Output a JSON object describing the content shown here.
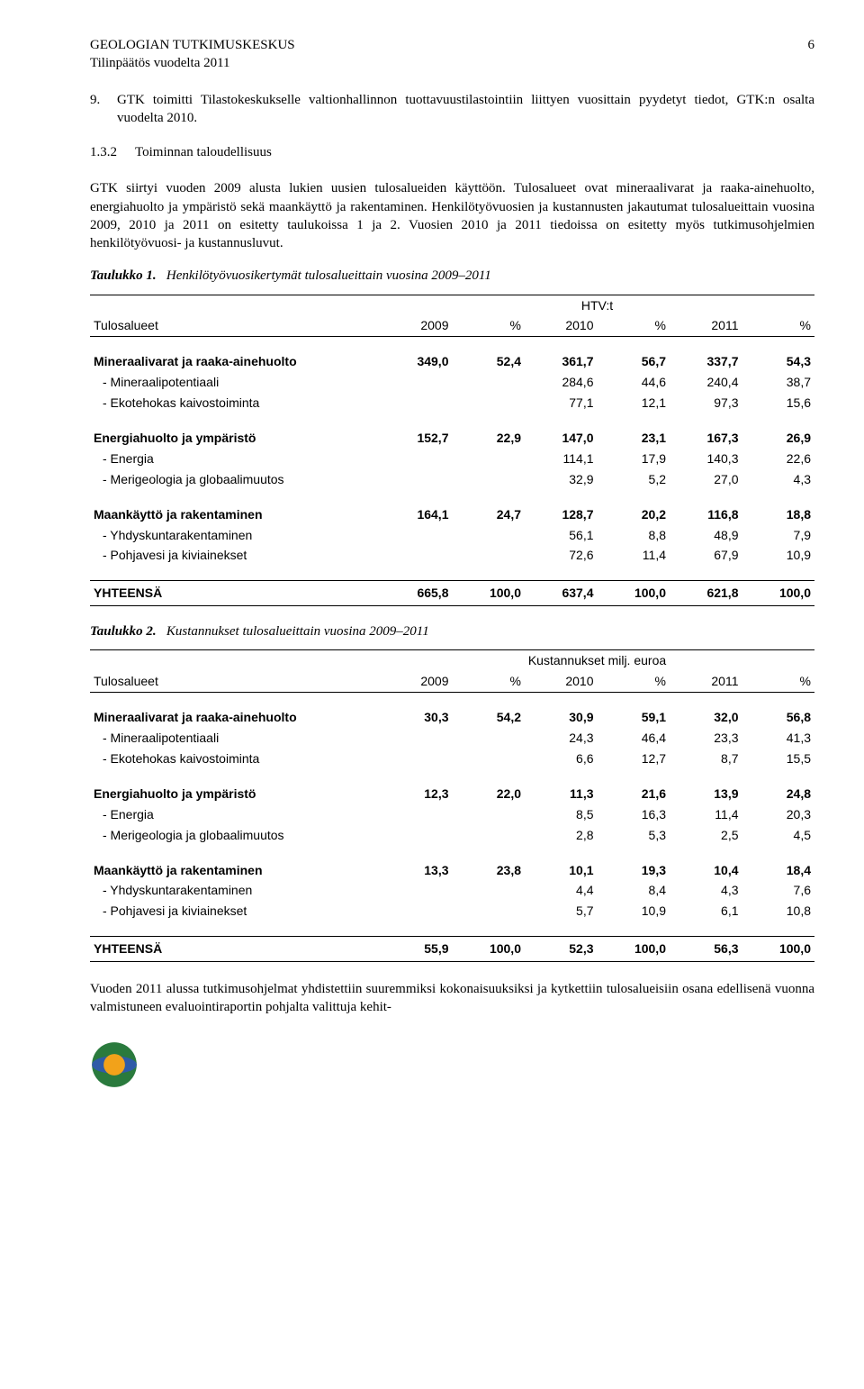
{
  "header": {
    "org": "GEOLOGIAN TUTKIMUSKESKUS",
    "subtitle": "Tilinpäätös vuodelta 2011",
    "page": "6"
  },
  "list9": {
    "num": "9.",
    "text": "GTK toimitti Tilastokeskukselle valtionhallinnon tuottavuustilastointiin liittyen vuosittain pyydetyt tiedot, GTK:n osalta vuodelta 2010."
  },
  "section": {
    "num": "1.3.2",
    "title": "Toiminnan taloudellisuus"
  },
  "para1": "GTK siirtyi vuoden 2009 alusta lukien uusien tulosalueiden käyttöön. Tulosalueet ovat mineraalivarat ja raaka-ainehuolto, energiahuolto ja ympäristö sekä maankäyttö ja rakentaminen. Henkilötyövuosien ja kustannusten jakautumat tulosalueittain vuosina 2009, 2010 ja 2011 on esitetty taulukoissa 1 ja 2. Vuosien 2010 ja 2011 tiedoissa on esitetty myös tutkimusohjelmien henkilötyövuosi- ja kustannusluvut.",
  "table1": {
    "caption_label": "Taulukko 1.",
    "caption_text": "Henkilötyövuosikertymät tulosalueittain vuosina 2009–2011",
    "super_header": "HTV:t",
    "col_label": "Tulosalueet",
    "cols": [
      "2009",
      "%",
      "2010",
      "%",
      "2011",
      "%"
    ],
    "groups": [
      {
        "title": "Mineraalivarat ja raaka-ainehuolto",
        "vals": [
          "349,0",
          "52,4",
          "361,7",
          "56,7",
          "337,7",
          "54,3"
        ],
        "subs": [
          {
            "label": "- Mineraalipotentiaali",
            "vals": [
              "",
              "",
              "284,6",
              "44,6",
              "240,4",
              "38,7"
            ]
          },
          {
            "label": "- Ekotehokas kaivostoiminta",
            "vals": [
              "",
              "",
              "77,1",
              "12,1",
              "97,3",
              "15,6"
            ]
          }
        ]
      },
      {
        "title": "Energiahuolto ja ympäristö",
        "vals": [
          "152,7",
          "22,9",
          "147,0",
          "23,1",
          "167,3",
          "26,9"
        ],
        "subs": [
          {
            "label": "- Energia",
            "vals": [
              "",
              "",
              "114,1",
              "17,9",
              "140,3",
              "22,6"
            ]
          },
          {
            "label": "- Merigeologia ja globaalimuutos",
            "vals": [
              "",
              "",
              "32,9",
              "5,2",
              "27,0",
              "4,3"
            ]
          }
        ]
      },
      {
        "title": "Maankäyttö ja rakentaminen",
        "vals": [
          "164,1",
          "24,7",
          "128,7",
          "20,2",
          "116,8",
          "18,8"
        ],
        "subs": [
          {
            "label": "- Yhdyskuntarakentaminen",
            "vals": [
              "",
              "",
              "56,1",
              "8,8",
              "48,9",
              "7,9"
            ]
          },
          {
            "label": "- Pohjavesi ja kiviainekset",
            "vals": [
              "",
              "",
              "72,6",
              "11,4",
              "67,9",
              "10,9"
            ]
          }
        ]
      }
    ],
    "total": {
      "label": "YHTEENSÄ",
      "vals": [
        "665,8",
        "100,0",
        "637,4",
        "100,0",
        "621,8",
        "100,0"
      ]
    }
  },
  "table2": {
    "caption_label": "Taulukko 2.",
    "caption_text": "Kustannukset tulosalueittain vuosina 2009–2011",
    "super_header": "Kustannukset milj. euroa",
    "col_label": "Tulosalueet",
    "cols": [
      "2009",
      "%",
      "2010",
      "%",
      "2011",
      "%"
    ],
    "groups": [
      {
        "title": "Mineraalivarat ja raaka-ainehuolto",
        "vals": [
          "30,3",
          "54,2",
          "30,9",
          "59,1",
          "32,0",
          "56,8"
        ],
        "subs": [
          {
            "label": "- Mineraalipotentiaali",
            "vals": [
              "",
              "",
              "24,3",
              "46,4",
              "23,3",
              "41,3"
            ]
          },
          {
            "label": "- Ekotehokas kaivostoiminta",
            "vals": [
              "",
              "",
              "6,6",
              "12,7",
              "8,7",
              "15,5"
            ]
          }
        ]
      },
      {
        "title": "Energiahuolto ja ympäristö",
        "vals": [
          "12,3",
          "22,0",
          "11,3",
          "21,6",
          "13,9",
          "24,8"
        ],
        "subs": [
          {
            "label": "- Energia",
            "vals": [
              "",
              "",
              "8,5",
              "16,3",
              "11,4",
              "20,3"
            ]
          },
          {
            "label": "- Merigeologia ja globaalimuutos",
            "vals": [
              "",
              "",
              "2,8",
              "5,3",
              "2,5",
              "4,5"
            ]
          }
        ]
      },
      {
        "title": "Maankäyttö ja rakentaminen",
        "vals": [
          "13,3",
          "23,8",
          "10,1",
          "19,3",
          "10,4",
          "18,4"
        ],
        "subs": [
          {
            "label": "- Yhdyskuntarakentaminen",
            "vals": [
              "",
              "",
              "4,4",
              "8,4",
              "4,3",
              "7,6"
            ]
          },
          {
            "label": "- Pohjavesi ja kiviainekset",
            "vals": [
              "",
              "",
              "5,7",
              "10,9",
              "6,1",
              "10,8"
            ]
          }
        ]
      }
    ],
    "total": {
      "label": "YHTEENSÄ",
      "vals": [
        "55,9",
        "100,0",
        "52,3",
        "100,0",
        "56,3",
        "100,0"
      ]
    }
  },
  "para2": "Vuoden 2011 alussa tutkimusohjelmat yhdistettiin suuremmiksi kokonaisuuksiksi ja kytkettiin tulosalueisiin osana edellisenä vuonna valmistuneen evaluointiraportin pohjalta valittuja kehit-",
  "logo": {
    "outer_color": "#2a7a3d",
    "inner_color": "#f2a21a",
    "band_color": "#2e5aa8"
  },
  "col_widths": {
    "label_pct": 40,
    "num_pct": 10
  }
}
